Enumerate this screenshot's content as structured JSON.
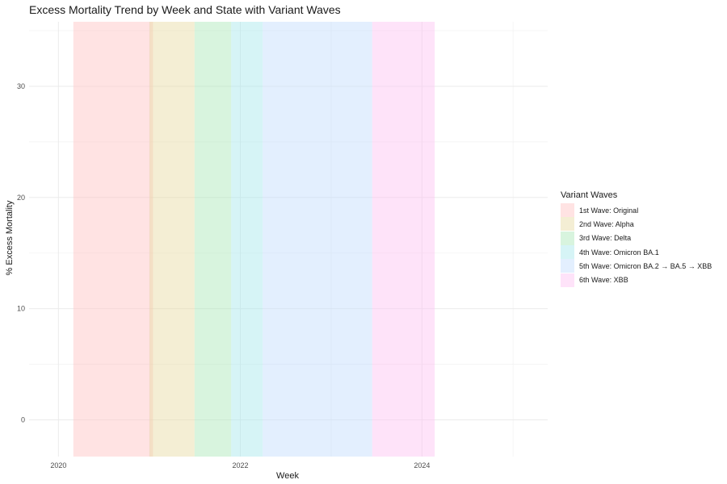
{
  "chart_data": {
    "type": "area",
    "title": "Excess Mortality Trend by Week and State with Variant Waves",
    "xlabel": "Week",
    "ylabel": "% Excess Mortality",
    "x_ticks": [
      "2020",
      "2022",
      "2024"
    ],
    "y_ticks": [
      0,
      10,
      20,
      30
    ],
    "xlim": [
      "2019-09-05",
      "2025-05-20"
    ],
    "ylim": [
      -3.3,
      35.8
    ],
    "grid": true,
    "legend": {
      "title": "Variant Waves",
      "position": "right"
    },
    "waves": [
      {
        "name": "1st Wave: Original",
        "start": "2020-03-01",
        "end": "2021-01-15",
        "color": "#ffc1c1"
      },
      {
        "name": "2nd Wave: Alpha",
        "start": "2021-01-01",
        "end": "2021-07-01",
        "color": "#e6d9a0"
      },
      {
        "name": "3rd Wave: Delta",
        "start": "2021-07-01",
        "end": "2021-11-25",
        "color": "#a8e6b6"
      },
      {
        "name": "4th Wave: Omicron BA.1",
        "start": "2021-11-25",
        "end": "2022-04-01",
        "color": "#a3e6ea"
      },
      {
        "name": "5th Wave: Omicron BA.2 → BA.5 → XBB",
        "start": "2022-04-01",
        "end": "2023-06-15",
        "color": "#c2dcfc"
      },
      {
        "name": "6th Wave: XBB",
        "start": "2023-06-15",
        "end": "2024-02-21",
        "color": "#fcc2f2"
      }
    ]
  }
}
